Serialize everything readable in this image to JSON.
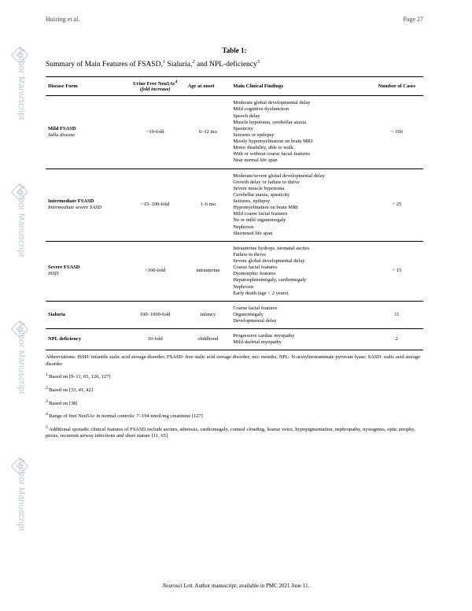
{
  "header": {
    "author": "Huizing et al.",
    "page": "Page 27"
  },
  "table_label": "Table 1:",
  "summary": {
    "prefix": "Summary of Main Features of FSASD,",
    "mid1": " Sialuria,",
    "mid2": " and NPL-deficiency",
    "s1": "1",
    "s2": "2",
    "s3": "3"
  },
  "columns": {
    "c1": "Disease Form",
    "c2": "Urine Free Neu5Ac",
    "c2sup": "4",
    "c2sub": "(fold increase)",
    "c3": "Age at onset",
    "c4": "Main Clinical Findings",
    "c5": "Number of Cases"
  },
  "rows": [
    {
      "disease_main": "Mild FSASD",
      "disease_sub": "Salla disease",
      "urine": "~10-fold",
      "age": "6–12 mo",
      "findings": [
        "Moderate global developmental delay",
        "Mild cognitive dysfunction",
        "Speech delay",
        "Muscle hypotonia, cerebellar ataxia",
        "Spasticity",
        "Seizures or epilepsy",
        "Mostly hypomyelination on brain MRI",
        "Motor disability, able to walk",
        "With or without coarse facial features",
        "Near normal life span"
      ],
      "cases": "~ 160"
    },
    {
      "disease_main": "Intermediate FSASD",
      "disease_sub": "Intermediate severe SASD",
      "urine": "~15–100-fold",
      "age": "1–6 mo",
      "findings": [
        "Moderate/severe global developmental delay",
        "Growth delay or failure to thrive",
        "Severe muscle hypotonia",
        "Cerebellar ataxia, spasticity",
        "Seizures, epilepsy",
        "Hypomyelination on brain MRI",
        "Mild coarse facial features",
        "No or mild organomegaly",
        "Nephrosis",
        "Shortened life span"
      ],
      "cases": "~ 25"
    },
    {
      "disease_main": "Severe FSASD",
      "disease_sub": "ISSD",
      "urine": ">100-fold",
      "age": "intrauterine",
      "findings": [
        "Intrauterine hydrops, neonatal ascites",
        "Failure to thrive",
        "Severe global developmental delay",
        "Coarse facial features",
        "Dysmorphic features",
        "Hepatosplenomegaly, cardiomegaly",
        "Nephrosis",
        "Early death (age < 2 years)"
      ],
      "cases": "~ 15"
    },
    {
      "disease_main": "Sialuria",
      "disease_sub": "",
      "urine": "100–1000-fold",
      "age": "infancy",
      "findings": [
        "Coarse facial features",
        "Organomegaly",
        "Developmental delay"
      ],
      "cases": "11"
    },
    {
      "disease_main": "NPL deficiency",
      "disease_sub": "",
      "urine": "10-fold",
      "age": "childhood",
      "findings": [
        "Progressive cardiac myopathy",
        "Mild skeletal myopathy"
      ],
      "cases": "2"
    }
  ],
  "abbrev": "Abbreviations: ISSD: infantile sialic acid storage disorder; FSASD: free sialic acid storage disorder; mo: months; NPL: N-acetylneuraminate pyruvate lyase; SASD: sialic acid storage disorder",
  "footnotes": [
    {
      "sup": "1.",
      "text": "Based on [9–11, 65, 126, 127]"
    },
    {
      "sup": "2.",
      "text": "Based on [33, 41, 42]"
    },
    {
      "sup": "3.",
      "text": "Based on [38]"
    },
    {
      "sup": "4.",
      "text": "Range of free Neu5Ac in normal controls: 7–194 nmol/mg creatinine [127]"
    },
    {
      "sup": "5.",
      "text": "Additional sporadic clinical features of FSASD include ascites, athetosis, cardiomegaly, corneal clouding, hoarse voice, hypopigmentation, nephropathy, nystagmus, optic atrophy, ptosis, recurrent airway infections and short stature [11, 65]"
    }
  ],
  "footer": {
    "journal": "Neurosci Lett.",
    "rest": " Author manuscript; available in PMC 2021 June 11."
  },
  "watermark": "Author Manuscript"
}
